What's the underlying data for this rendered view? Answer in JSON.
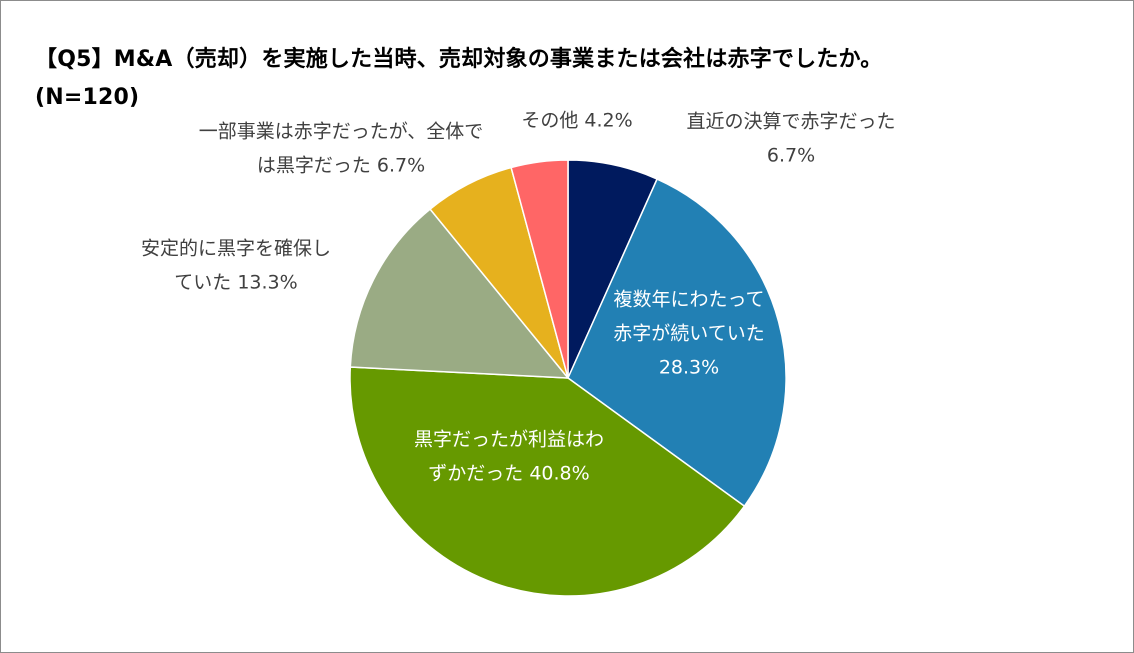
{
  "title": "【Q5】M&A（売却）を実施した当時、売却対象の事業または会社は赤字でしたか。",
  "subtitle": "(N=120)",
  "chart_data": {
    "type": "pie",
    "start_angle_deg": 0,
    "direction": "clockwise",
    "slices": [
      {
        "label_lines": [
          "直近の決算で赤字だった",
          "6.7%"
        ],
        "value": 6.7,
        "color": "#001a5e",
        "label_position": "outside",
        "label_color": "#404040"
      },
      {
        "label_lines": [
          "複数年にわたって",
          "赤字が続いていた",
          "28.3%"
        ],
        "value": 28.3,
        "color": "#2280b4",
        "label_position": "inside",
        "label_color": "#ffffff"
      },
      {
        "label_lines": [
          "黒字だったが利益はわ",
          "ずかだった 40.8%"
        ],
        "value": 40.8,
        "color": "#669900",
        "label_position": "inside",
        "label_color": "#ffffff"
      },
      {
        "label_lines": [
          "安定的に黒字を確保し",
          "ていた 13.3%"
        ],
        "value": 13.3,
        "color": "#9aab84",
        "label_position": "outside",
        "label_color": "#404040"
      },
      {
        "label_lines": [
          "一部事業は赤字だったが、全体で",
          "は黒字だった 6.7%"
        ],
        "value": 6.7,
        "color": "#e6b11e",
        "label_position": "outside",
        "label_color": "#404040"
      },
      {
        "label_lines": [
          "その他 4.2%"
        ],
        "value": 4.2,
        "color": "#ff6666",
        "label_position": "outside",
        "label_color": "#404040"
      }
    ]
  }
}
